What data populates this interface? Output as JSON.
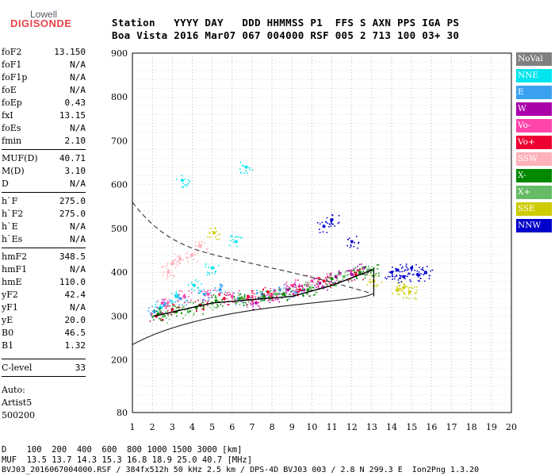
{
  "logo": {
    "top": "Lowell",
    "bottom": "DIGISONDE"
  },
  "header": {
    "row1": "Station   YYYY DAY   DDD HHMMSS P1  FFS S AXN PPS IGA PS",
    "row2": "Boa Vista 2016 Mar07 067 004000 RSF 005 2 713 100 03+ 30"
  },
  "params": [
    {
      "k": "foF2",
      "v": "13.150"
    },
    {
      "k": "foF1",
      "v": "N/A"
    },
    {
      "k": "foF1p",
      "v": "N/A"
    },
    {
      "k": "foE",
      "v": "N/A"
    },
    {
      "k": "foEp",
      "v": "0.43"
    },
    {
      "k": "fxI",
      "v": "13.15"
    },
    {
      "k": "foEs",
      "v": "N/A"
    },
    {
      "k": "fmin",
      "v": "2.10"
    },
    {
      "k": "MUF(D)",
      "v": "40.71"
    },
    {
      "k": "M(D)",
      "v": "3.10"
    },
    {
      "k": "D",
      "v": "N/A"
    },
    {
      "k": "h`F",
      "v": "275.0"
    },
    {
      "k": "h`F2",
      "v": "275.0"
    },
    {
      "k": "h`E",
      "v": "N/A"
    },
    {
      "k": "h`Es",
      "v": "N/A"
    },
    {
      "k": "hmF2",
      "v": "348.5"
    },
    {
      "k": "hmF1",
      "v": "N/A"
    },
    {
      "k": "hmE",
      "v": "110.0"
    },
    {
      "k": "yF2",
      "v": "42.4"
    },
    {
      "k": "yF1",
      "v": "N/A"
    },
    {
      "k": "yE",
      "v": "20.0"
    },
    {
      "k": "B0",
      "v": "46.5"
    },
    {
      "k": "B1",
      "v": "1.32"
    },
    {
      "k": "C-level",
      "v": "33"
    }
  ],
  "notes": [
    "Auto:",
    "Artist5",
    "500200"
  ],
  "legend": [
    {
      "label": "NoVal",
      "color": "#808080",
      "text": "#ffffff"
    },
    {
      "label": "NNE",
      "color": "#00e5ee",
      "text": "#ffffff"
    },
    {
      "label": "E",
      "color": "#3aa0f0",
      "text": "#ffffff"
    },
    {
      "label": "W",
      "color": "#aa00aa",
      "text": "#ffffff"
    },
    {
      "label": "Vo-",
      "color": "#ff44aa",
      "text": "#ffffff"
    },
    {
      "label": "Vo+",
      "color": "#ee0033",
      "text": "#ffffff"
    },
    {
      "label": "SSW",
      "color": "#ffb0b8",
      "text": "#ffffff"
    },
    {
      "label": "X-",
      "color": "#008800",
      "text": "#ffffff"
    },
    {
      "label": "X+",
      "color": "#66bb66",
      "text": "#ffffff"
    },
    {
      "label": "SSE",
      "color": "#cccc00",
      "text": "#ffffff"
    },
    {
      "label": "NNW",
      "color": "#0000cc",
      "text": "#ffffff"
    }
  ],
  "footer": {
    "d_row": "D    100  200  400  600  800 1000 1500 3000 [km]",
    "muf_row": "MUF  13.5 13.7 14.3 15.3 16.8 18.9 25.0 40.7 [MHz]",
    "file_row": "BVJ03_2016067004000.RSF / 384fx512h 50 kHz 2.5 km / DPS-4D BVJ03 003 / 2.8 N 299.3 E  Ion2Png 1.3.20"
  },
  "chart_data": {
    "type": "scatter",
    "xlim": [
      1,
      20
    ],
    "ylim": [
      80,
      900
    ],
    "x_ticks": [
      "1",
      "2",
      "3",
      "4",
      "5",
      "6",
      "7",
      "8",
      "9",
      "10",
      "11",
      "12",
      "13",
      "14",
      "15",
      "16",
      "17",
      "18",
      "19",
      "20"
    ],
    "y_ticks": [
      "80",
      "200",
      "300",
      "400",
      "500",
      "600",
      "700",
      "800",
      "900"
    ],
    "grid": "dotted",
    "legend_position": "right",
    "series": [
      {
        "name": "NNE",
        "values": [
          [
            2.4,
            320
          ],
          [
            3.2,
            345
          ],
          [
            4.1,
            370
          ],
          [
            5.0,
            410
          ],
          [
            6.2,
            470
          ],
          [
            6.7,
            640
          ],
          [
            3.5,
            610
          ]
        ]
      },
      {
        "name": "E",
        "values": [
          [
            2.1,
            310
          ],
          [
            2.6,
            325
          ],
          [
            3.4,
            340
          ],
          [
            4.6,
            350
          ],
          [
            5.4,
            360
          ],
          [
            6.3,
            340
          ],
          [
            7.5,
            350
          ],
          [
            8.4,
            360
          ],
          [
            9.2,
            355
          ]
        ]
      },
      {
        "name": "W",
        "values": [
          [
            7.2,
            330
          ],
          [
            8.0,
            345
          ],
          [
            8.8,
            360
          ],
          [
            9.6,
            360
          ],
          [
            10.4,
            375
          ],
          [
            11.2,
            390
          ],
          [
            12.0,
            395
          ],
          [
            12.6,
            410
          ]
        ]
      },
      {
        "name": "Vo-",
        "values": [
          [
            2.5,
            330
          ],
          [
            3.6,
            345
          ],
          [
            4.8,
            350
          ],
          [
            6.0,
            345
          ],
          [
            7.0,
            335
          ],
          [
            8.0,
            350
          ],
          [
            9.0,
            370
          ],
          [
            10.0,
            380
          ],
          [
            11.0,
            385
          ]
        ]
      },
      {
        "name": "Vo+",
        "values": [
          [
            2.2,
            300
          ],
          [
            3.0,
            315
          ],
          [
            4.4,
            325
          ],
          [
            5.6,
            340
          ],
          [
            6.8,
            345
          ],
          [
            7.8,
            355
          ],
          [
            9.4,
            360
          ],
          [
            10.6,
            380
          ],
          [
            12.2,
            395
          ]
        ]
      },
      {
        "name": "SSW",
        "values": [
          [
            2.8,
            400
          ],
          [
            3.4,
            430
          ],
          [
            4.0,
            440
          ],
          [
            4.4,
            460
          ],
          [
            3.0,
            420
          ]
        ]
      },
      {
        "name": "X-",
        "values": [
          [
            2.3,
            305
          ],
          [
            3.2,
            310
          ],
          [
            4.2,
            320
          ],
          [
            5.2,
            335
          ],
          [
            6.4,
            340
          ],
          [
            7.6,
            345
          ],
          [
            8.6,
            350
          ],
          [
            9.8,
            360
          ],
          [
            11.0,
            385
          ],
          [
            12.4,
            400
          ],
          [
            13.0,
            405
          ]
        ]
      },
      {
        "name": "X+",
        "values": [
          [
            2.6,
            300
          ],
          [
            3.8,
            310
          ],
          [
            5.0,
            330
          ],
          [
            6.6,
            340
          ],
          [
            8.2,
            350
          ],
          [
            9.9,
            365
          ],
          [
            11.6,
            390
          ],
          [
            12.8,
            405
          ]
        ]
      },
      {
        "name": "SSE",
        "values": [
          [
            14.3,
            360
          ],
          [
            14.6,
            365
          ],
          [
            14.9,
            355
          ],
          [
            5.1,
            490
          ],
          [
            13.1,
            380
          ]
        ]
      },
      {
        "name": "NNW",
        "values": [
          [
            14.0,
            400
          ],
          [
            14.3,
            405
          ],
          [
            14.6,
            390
          ],
          [
            15.0,
            410
          ],
          [
            15.3,
            395
          ],
          [
            15.7,
            400
          ],
          [
            11.0,
            520
          ],
          [
            12.0,
            470
          ],
          [
            10.6,
            505
          ]
        ]
      }
    ]
  }
}
